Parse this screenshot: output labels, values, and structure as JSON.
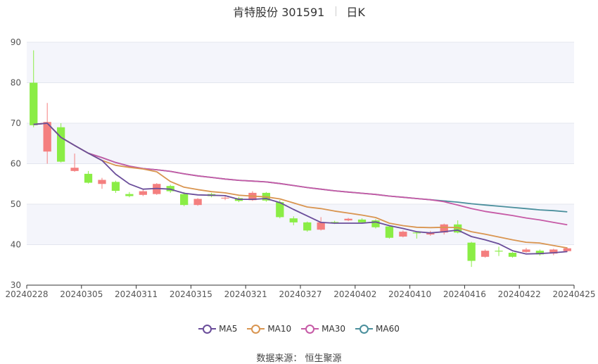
{
  "title": "肯特股份 301591",
  "subtitle": "日K",
  "source": "数据来源：  恒生聚源",
  "colors": {
    "up": "#f47f7f",
    "down": "#8aed45",
    "MA5": "#6a4d9a",
    "MA10": "#d99550",
    "MA30": "#c65aa6",
    "MA60": "#4a8f9c",
    "band": "#f4f5fb",
    "axis": "#333333",
    "grid": "#e3e6ee"
  },
  "chart_data": {
    "type": "candlestick",
    "ylim": [
      30,
      90
    ],
    "yticks": [
      30,
      40,
      50,
      60,
      70,
      80,
      90
    ],
    "xtick_labels": [
      "20240228",
      "20240305",
      "20240311",
      "20240315",
      "20240321",
      "20240327",
      "20240402",
      "20240410",
      "20240416",
      "20240422",
      "20240425"
    ],
    "dates": [
      "20240228",
      "20240229",
      "20240301",
      "20240304",
      "20240305",
      "20240306",
      "20240307",
      "20240308",
      "20240311",
      "20240312",
      "20240313",
      "20240314",
      "20240315",
      "20240318",
      "20240319",
      "20240320",
      "20240321",
      "20240322",
      "20240325",
      "20240326",
      "20240327",
      "20240328",
      "20240329",
      "20240401",
      "20240402",
      "20240403",
      "20240408",
      "20240409",
      "20240410",
      "20240411",
      "20240412",
      "20240415",
      "20240416",
      "20240417",
      "20240418",
      "20240419",
      "20240422",
      "20240423",
      "20240424",
      "20240425"
    ],
    "candles": [
      {
        "o": 80.0,
        "c": 69.5,
        "h": 88.0,
        "l": 69.0
      },
      {
        "o": 63.0,
        "c": 70.3,
        "h": 75.0,
        "l": 60.0
      },
      {
        "o": 69.0,
        "c": 60.5,
        "h": 70.0,
        "l": 60.3
      },
      {
        "o": 58.2,
        "c": 59.0,
        "h": 62.5,
        "l": 58.0
      },
      {
        "o": 57.5,
        "c": 55.3,
        "h": 58.2,
        "l": 55.1
      },
      {
        "o": 55.0,
        "c": 56.0,
        "h": 56.5,
        "l": 53.8
      },
      {
        "o": 55.5,
        "c": 53.3,
        "h": 55.8,
        "l": 52.8
      },
      {
        "o": 52.5,
        "c": 52.0,
        "h": 53.0,
        "l": 51.7
      },
      {
        "o": 52.3,
        "c": 53.2,
        "h": 53.6,
        "l": 52.0
      },
      {
        "o": 52.5,
        "c": 55.0,
        "h": 55.2,
        "l": 52.3
      },
      {
        "o": 54.5,
        "c": 53.2,
        "h": 54.8,
        "l": 52.8
      },
      {
        "o": 52.5,
        "c": 49.8,
        "h": 53.0,
        "l": 49.5
      },
      {
        "o": 49.8,
        "c": 51.3,
        "h": 51.5,
        "l": 49.6
      },
      {
        "o": 52.5,
        "c": 52.0,
        "h": 52.8,
        "l": 51.7
      },
      {
        "o": 51.4,
        "c": 51.6,
        "h": 52.0,
        "l": 51.0
      },
      {
        "o": 51.5,
        "c": 50.8,
        "h": 51.8,
        "l": 50.5
      },
      {
        "o": 51.0,
        "c": 52.8,
        "h": 53.2,
        "l": 50.8
      },
      {
        "o": 52.8,
        "c": 50.9,
        "h": 53.0,
        "l": 50.6
      },
      {
        "o": 50.5,
        "c": 46.8,
        "h": 51.0,
        "l": 46.5
      },
      {
        "o": 46.5,
        "c": 45.5,
        "h": 47.0,
        "l": 44.8
      },
      {
        "o": 45.5,
        "c": 43.5,
        "h": 45.7,
        "l": 43.2
      },
      {
        "o": 43.7,
        "c": 45.5,
        "h": 46.8,
        "l": 43.5
      },
      {
        "o": 45.6,
        "c": 45.4,
        "h": 45.9,
        "l": 45.1
      },
      {
        "o": 46.0,
        "c": 46.4,
        "h": 46.6,
        "l": 45.8
      },
      {
        "o": 46.2,
        "c": 45.5,
        "h": 46.5,
        "l": 45.3
      },
      {
        "o": 46.0,
        "c": 44.3,
        "h": 46.3,
        "l": 44.0
      },
      {
        "o": 44.5,
        "c": 41.7,
        "h": 44.8,
        "l": 41.5
      },
      {
        "o": 42.0,
        "c": 43.2,
        "h": 43.5,
        "l": 41.8
      },
      {
        "o": 43.0,
        "c": 42.8,
        "h": 43.3,
        "l": 41.5
      },
      {
        "o": 42.5,
        "c": 43.0,
        "h": 43.4,
        "l": 42.2
      },
      {
        "o": 43.0,
        "c": 45.0,
        "h": 45.2,
        "l": 42.5
      },
      {
        "o": 45.0,
        "c": 43.0,
        "h": 46.0,
        "l": 42.8
      },
      {
        "o": 40.5,
        "c": 36.0,
        "h": 40.7,
        "l": 34.5
      },
      {
        "o": 37.0,
        "c": 38.5,
        "h": 38.8,
        "l": 36.8
      },
      {
        "o": 38.5,
        "c": 38.3,
        "h": 39.5,
        "l": 37.2
      },
      {
        "o": 38.0,
        "c": 37.0,
        "h": 38.2,
        "l": 36.8
      },
      {
        "o": 38.2,
        "c": 38.8,
        "h": 39.2,
        "l": 38.0
      },
      {
        "o": 38.5,
        "c": 37.6,
        "h": 38.8,
        "l": 37.3
      },
      {
        "o": 37.8,
        "c": 38.8,
        "h": 39.0,
        "l": 37.4
      },
      {
        "o": 38.4,
        "c": 39.1,
        "h": 39.3,
        "l": 38.2
      }
    ],
    "series": [
      {
        "name": "MA5",
        "values": [
          69.7,
          70.0,
          66.5,
          64.5,
          62.6,
          60.8,
          57.4,
          55.0,
          53.7,
          53.9,
          53.7,
          52.7,
          52.3,
          52.2,
          52.1,
          51.2,
          51.2,
          51.4,
          50.4,
          48.7,
          47.1,
          45.5,
          45.3,
          45.3,
          45.3,
          45.6,
          44.7,
          44.0,
          43.2,
          42.9,
          43.2,
          43.6,
          42.0,
          41.2,
          40.2,
          38.5,
          37.7,
          37.8,
          38.0,
          38.3
        ]
      },
      {
        "name": "MA10",
        "values": [
          69.7,
          70.0,
          66.5,
          64.5,
          62.6,
          60.8,
          59.6,
          59.1,
          58.7,
          58.0,
          55.6,
          54.2,
          53.6,
          53.1,
          52.8,
          52.2,
          52.0,
          51.8,
          51.3,
          50.3,
          49.3,
          48.9,
          48.3,
          47.8,
          47.3,
          46.7,
          45.3,
          44.7,
          44.3,
          44.2,
          44.3,
          44.2,
          43.2,
          42.6,
          41.9,
          41.2,
          40.6,
          40.4,
          39.8,
          39.2
        ]
      },
      {
        "name": "MA30",
        "values": [
          69.7,
          70.0,
          66.5,
          64.5,
          62.6,
          61.5,
          60.3,
          59.4,
          58.8,
          58.5,
          58.1,
          57.5,
          57.0,
          56.6,
          56.2,
          55.9,
          55.7,
          55.5,
          55.1,
          54.6,
          54.1,
          53.7,
          53.3,
          53.0,
          52.7,
          52.4,
          52.0,
          51.7,
          51.4,
          51.1,
          50.6,
          49.8,
          48.9,
          48.2,
          47.7,
          47.2,
          46.6,
          46.1,
          45.5,
          44.9
        ]
      },
      {
        "name": "MA60",
        "values": [
          69.7,
          70.0,
          66.5,
          64.5,
          62.6,
          61.5,
          60.3,
          59.4,
          58.8,
          58.5,
          58.1,
          57.5,
          57.0,
          56.6,
          56.2,
          55.9,
          55.7,
          55.5,
          55.1,
          54.6,
          54.1,
          53.7,
          53.3,
          53.0,
          52.7,
          52.4,
          52.0,
          51.7,
          51.4,
          51.1,
          50.8,
          50.5,
          50.1,
          49.8,
          49.5,
          49.2,
          48.9,
          48.6,
          48.4,
          48.1
        ]
      }
    ]
  }
}
